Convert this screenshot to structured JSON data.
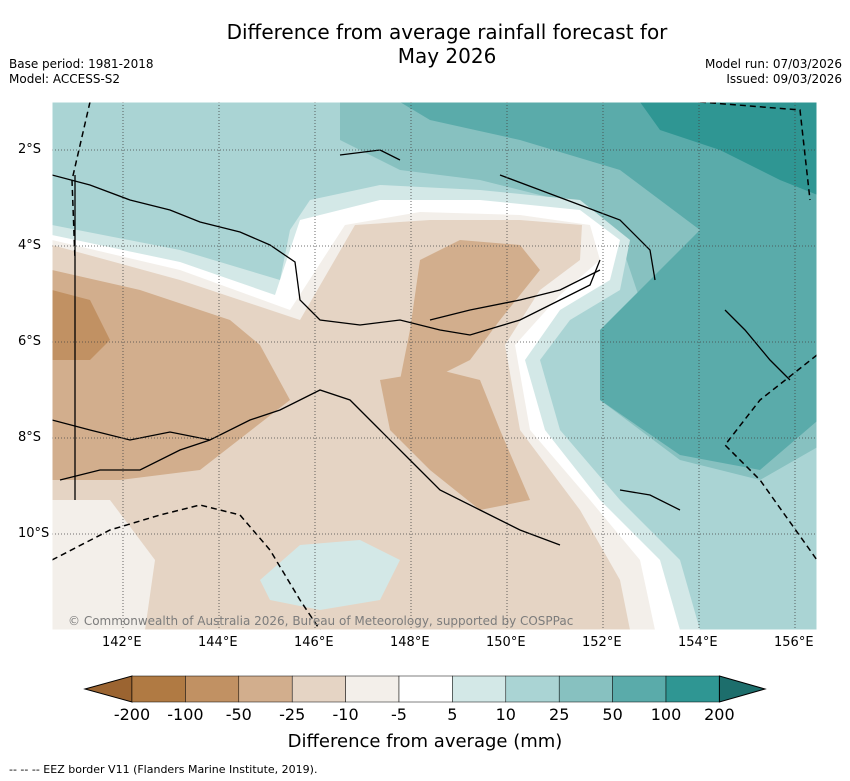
{
  "title_line1": "Difference from average rainfall forecast for",
  "title_line2": "May 2026",
  "base_period": "Base period: 1981-2018",
  "model": "Model: ACCESS-S2",
  "model_run": "Model run: 07/03/2026",
  "issued": "Issued: 09/03/2026",
  "copyright": "© Commonwealth of Australia 2026, Bureau of Meteorology, supported by COSPPac",
  "lat_labels": [
    "2°S",
    "4°S",
    "6°S",
    "8°S",
    "10°S"
  ],
  "lon_labels": [
    "142°E",
    "144°E",
    "146°E",
    "148°E",
    "150°E",
    "152°E",
    "154°E",
    "156°E"
  ],
  "colorbar": {
    "title": "Difference from average (mm)",
    "labels": [
      "-200",
      "-100",
      "-50",
      "-25",
      "-10",
      "-5",
      "5",
      "10",
      "25",
      "50",
      "100",
      "200"
    ],
    "colors": [
      "#9b6431",
      "#b07a43",
      "#c19163",
      "#d2ae8d",
      "#e5d4c4",
      "#f3efea",
      "#ffffff",
      "#d3e8e7",
      "#aad4d4",
      "#87c1c0",
      "#5aabaa",
      "#2f9693",
      "#1d6e6c"
    ]
  },
  "legend_footnote": "-- -- -- EEZ border V11 (Flanders Marine Institute, 2019).",
  "icons": {
    "eez_border": "dashed-line-icon"
  }
}
